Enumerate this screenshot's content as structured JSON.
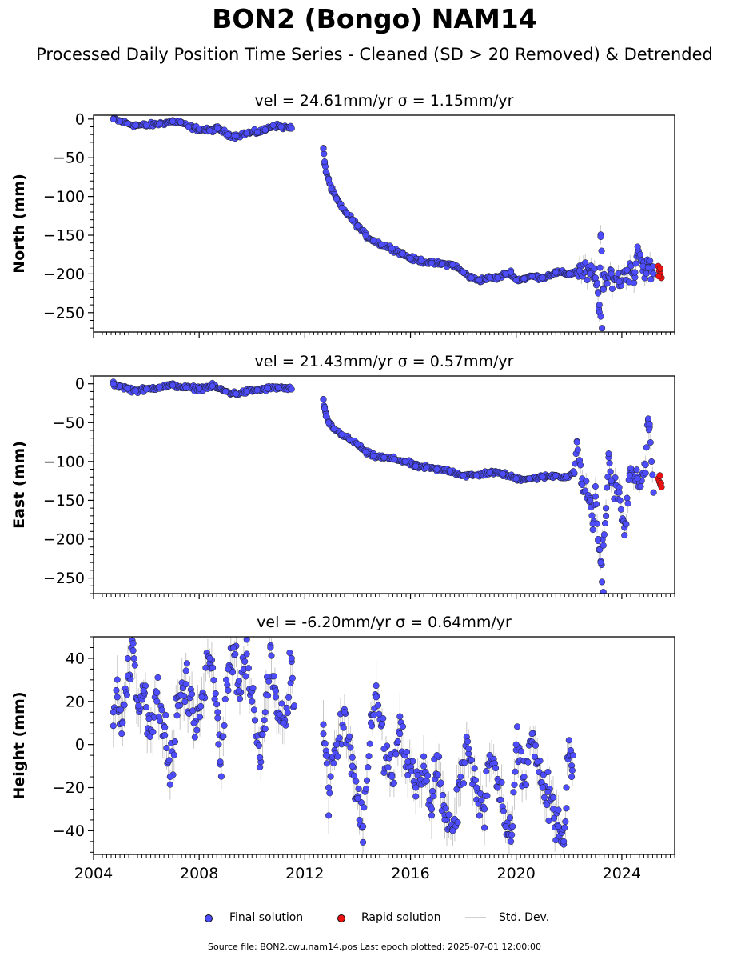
{
  "figure": {
    "title": "BON2 (Bongo) NAM14",
    "subtitle": "Processed Daily Position Time Series - Cleaned (SD > 20 Removed) & Detrended",
    "source_note": "Source file: BON2.cwu.nam14.pos  Last epoch plotted: 2025-07-01 12:00:00"
  },
  "legend": {
    "final_label": "Final solution",
    "rapid_label": "Rapid solution",
    "std_label": "Std. Dev."
  },
  "colors": {
    "final": "#4d4dff",
    "rapid": "#ee1111",
    "marker_edge": "#1a1a1a",
    "std_dev": "#c8c8c8"
  },
  "chart_data": [
    {
      "type": "scatter",
      "title": "vel = 24.61mm/yr   σ = 1.15mm/yr",
      "ylabel": "North (mm)",
      "xlim": [
        2004,
        2026
      ],
      "ylim": [
        -275,
        5
      ],
      "y_ticks": [
        0,
        -50,
        -100,
        -150,
        -200,
        -250
      ],
      "x_tick_labels": [],
      "series": [
        {
          "name": "Final solution",
          "points": [
            [
              2004.75,
              0
            ],
            [
              2005.0,
              -3
            ],
            [
              2005.3,
              -6
            ],
            [
              2005.6,
              -8
            ],
            [
              2006.0,
              -8
            ],
            [
              2006.5,
              -6
            ],
            [
              2007.0,
              -3
            ],
            [
              2007.3,
              -4
            ],
            [
              2007.6,
              -10
            ],
            [
              2008.0,
              -13
            ],
            [
              2008.4,
              -15
            ],
            [
              2008.7,
              -12
            ],
            [
              2009.1,
              -20
            ],
            [
              2009.4,
              -22
            ],
            [
              2009.8,
              -18
            ],
            [
              2010.2,
              -17
            ],
            [
              2010.5,
              -14
            ],
            [
              2010.8,
              -8
            ],
            [
              2011.1,
              -10
            ],
            [
              2011.5,
              -12
            ],
            [
              2012.7,
              -38
            ],
            [
              2012.75,
              -55
            ],
            [
              2012.8,
              -68
            ],
            [
              2012.9,
              -78
            ],
            [
              2013.0,
              -90
            ],
            [
              2013.2,
              -103
            ],
            [
              2013.4,
              -115
            ],
            [
              2013.6,
              -122
            ],
            [
              2013.8,
              -130
            ],
            [
              2014.0,
              -138
            ],
            [
              2014.3,
              -150
            ],
            [
              2014.6,
              -157
            ],
            [
              2014.9,
              -162
            ],
            [
              2015.3,
              -167
            ],
            [
              2015.7,
              -174
            ],
            [
              2016.0,
              -180
            ],
            [
              2016.4,
              -183
            ],
            [
              2016.8,
              -186
            ],
            [
              2017.2,
              -187
            ],
            [
              2017.6,
              -188
            ],
            [
              2018.0,
              -198
            ],
            [
              2018.3,
              -205
            ],
            [
              2018.6,
              -208
            ],
            [
              2019.0,
              -205
            ],
            [
              2019.3,
              -205
            ],
            [
              2019.6,
              -200
            ],
            [
              2019.8,
              -198
            ],
            [
              2020.0,
              -208
            ],
            [
              2020.3,
              -206
            ],
            [
              2020.6,
              -203
            ],
            [
              2021.0,
              -205
            ],
            [
              2021.5,
              -198
            ],
            [
              2022.0,
              -200
            ],
            [
              2022.4,
              -196
            ],
            [
              2022.8,
              -200
            ],
            [
              2023.0,
              -205
            ],
            [
              2023.1,
              -225
            ],
            [
              2023.15,
              -240
            ],
            [
              2023.2,
              -255
            ],
            [
              2023.25,
              -270
            ],
            [
              2023.3,
              -220
            ],
            [
              2023.6,
              -200
            ],
            [
              2023.9,
              -210
            ],
            [
              2024.2,
              -195
            ],
            [
              2024.5,
              -198
            ],
            [
              2024.8,
              -190
            ],
            [
              2025.0,
              -192
            ],
            [
              2025.2,
              -200
            ],
            [
              2023.2,
              -152
            ],
            [
              2024.6,
              -165
            ]
          ]
        },
        {
          "name": "Rapid solution",
          "points": [
            [
              2025.38,
              -190
            ],
            [
              2025.42,
              -196
            ],
            [
              2025.46,
              -200
            ],
            [
              2025.5,
              -205
            ],
            [
              2025.45,
              -193
            ],
            [
              2025.4,
              -203
            ]
          ]
        }
      ]
    },
    {
      "type": "scatter",
      "title": "vel = 21.43mm/yr   σ = 0.57mm/yr",
      "ylabel": "East (mm)",
      "xlim": [
        2004,
        2026
      ],
      "ylim": [
        -270,
        10
      ],
      "y_ticks": [
        0,
        -50,
        -100,
        -150,
        -200,
        -250
      ],
      "x_tick_labels": [],
      "series": [
        {
          "name": "Final solution",
          "points": [
            [
              2004.75,
              0
            ],
            [
              2005.0,
              -3
            ],
            [
              2005.3,
              -6
            ],
            [
              2005.6,
              -9
            ],
            [
              2006.0,
              -7
            ],
            [
              2006.5,
              -4
            ],
            [
              2007.0,
              -2
            ],
            [
              2007.5,
              -5
            ],
            [
              2008.0,
              -6
            ],
            [
              2008.5,
              -3
            ],
            [
              2009.0,
              -10
            ],
            [
              2009.4,
              -13
            ],
            [
              2009.8,
              -10
            ],
            [
              2010.2,
              -8
            ],
            [
              2010.6,
              -6
            ],
            [
              2011.0,
              -5
            ],
            [
              2011.5,
              -7
            ],
            [
              2012.7,
              -20
            ],
            [
              2012.75,
              -32
            ],
            [
              2012.8,
              -42
            ],
            [
              2012.9,
              -50
            ],
            [
              2013.1,
              -58
            ],
            [
              2013.4,
              -65
            ],
            [
              2013.7,
              -72
            ],
            [
              2014.0,
              -78
            ],
            [
              2014.3,
              -88
            ],
            [
              2014.6,
              -93
            ],
            [
              2015.0,
              -95
            ],
            [
              2015.4,
              -97
            ],
            [
              2015.8,
              -100
            ],
            [
              2016.2,
              -106
            ],
            [
              2016.6,
              -108
            ],
            [
              2017.0,
              -110
            ],
            [
              2017.5,
              -112
            ],
            [
              2018.0,
              -118
            ],
            [
              2018.5,
              -118
            ],
            [
              2019.0,
              -114
            ],
            [
              2019.5,
              -116
            ],
            [
              2020.0,
              -122
            ],
            [
              2020.5,
              -122
            ],
            [
              2021.0,
              -120
            ],
            [
              2021.5,
              -118
            ],
            [
              2021.9,
              -120
            ],
            [
              2022.2,
              -115
            ],
            [
              2022.5,
              -130
            ],
            [
              2022.8,
              -150
            ],
            [
              2022.9,
              -180
            ],
            [
              2023.0,
              -145
            ],
            [
              2023.1,
              -200
            ],
            [
              2023.2,
              -230
            ],
            [
              2023.25,
              -255
            ],
            [
              2023.3,
              -268
            ],
            [
              2023.4,
              -170
            ],
            [
              2023.6,
              -125
            ],
            [
              2023.9,
              -140
            ],
            [
              2024.1,
              -195
            ],
            [
              2024.3,
              -118
            ],
            [
              2024.6,
              -122
            ],
            [
              2024.9,
              -115
            ],
            [
              2025.0,
              -45
            ],
            [
              2025.05,
              -52
            ],
            [
              2025.2,
              -140
            ],
            [
              2022.3,
              -75
            ],
            [
              2023.5,
              -90
            ]
          ]
        },
        {
          "name": "Rapid solution",
          "points": [
            [
              2025.38,
              -122
            ],
            [
              2025.42,
              -126
            ],
            [
              2025.46,
              -130
            ],
            [
              2025.5,
              -133
            ],
            [
              2025.44,
              -118
            ],
            [
              2025.48,
              -128
            ]
          ]
        }
      ]
    },
    {
      "type": "scatter",
      "title": "vel = -6.20mm/yr   σ = 0.64mm/yr",
      "ylabel": "Height (mm)",
      "xlim": [
        2004,
        2026
      ],
      "ylim": [
        -51,
        50
      ],
      "y_ticks": [
        40,
        20,
        0,
        -20,
        -40
      ],
      "x_tick_labels": [
        "2004",
        "2008",
        "2012",
        "2016",
        "2020",
        "2024"
      ],
      "series": [
        {
          "name": "Final solution",
          "points": [
            [
              2004.75,
              15
            ],
            [
              2004.9,
              22
            ],
            [
              2005.1,
              10
            ],
            [
              2005.3,
              32
            ],
            [
              2005.5,
              47
            ],
            [
              2005.7,
              18
            ],
            [
              2005.9,
              25
            ],
            [
              2006.1,
              12
            ],
            [
              2006.4,
              20
            ],
            [
              2006.7,
              8
            ],
            [
              2006.9,
              -15
            ],
            [
              2007.2,
              18
            ],
            [
              2007.5,
              28
            ],
            [
              2007.8,
              10
            ],
            [
              2008.1,
              22
            ],
            [
              2008.4,
              40
            ],
            [
              2008.7,
              15
            ],
            [
              2008.8,
              -8
            ],
            [
              2009.1,
              35
            ],
            [
              2009.3,
              45
            ],
            [
              2009.5,
              25
            ],
            [
              2009.8,
              42
            ],
            [
              2010.0,
              20
            ],
            [
              2010.3,
              -6
            ],
            [
              2010.5,
              15
            ],
            [
              2010.7,
              45
            ],
            [
              2010.9,
              22
            ],
            [
              2011.2,
              10
            ],
            [
              2011.5,
              40
            ],
            [
              2011.6,
              18
            ],
            [
              2012.7,
              5
            ],
            [
              2012.8,
              -5
            ],
            [
              2012.9,
              -20
            ],
            [
              2013.2,
              0
            ],
            [
              2013.5,
              15
            ],
            [
              2013.8,
              -10
            ],
            [
              2014.0,
              -25
            ],
            [
              2014.2,
              -38
            ],
            [
              2014.5,
              10
            ],
            [
              2014.7,
              22
            ],
            [
              2015.0,
              -2
            ],
            [
              2015.3,
              -15
            ],
            [
              2015.6,
              5
            ],
            [
              2015.9,
              -8
            ],
            [
              2016.2,
              -20
            ],
            [
              2016.5,
              -10
            ],
            [
              2016.8,
              -30
            ],
            [
              2017.0,
              -5
            ],
            [
              2017.3,
              -35
            ],
            [
              2017.6,
              -40
            ],
            [
              2017.9,
              -15
            ],
            [
              2018.2,
              -2
            ],
            [
              2018.5,
              -20
            ],
            [
              2018.8,
              -30
            ],
            [
              2019.0,
              -5
            ],
            [
              2019.3,
              -20
            ],
            [
              2019.6,
              -38
            ],
            [
              2019.8,
              -45
            ],
            [
              2020.0,
              0
            ],
            [
              2020.3,
              -15
            ],
            [
              2020.6,
              5
            ],
            [
              2020.8,
              -8
            ],
            [
              2021.0,
              -20
            ],
            [
              2021.2,
              -22
            ],
            [
              2021.4,
              -30
            ],
            [
              2021.6,
              -38
            ],
            [
              2021.8,
              -45
            ],
            [
              2021.9,
              -20
            ],
            [
              2022.0,
              2
            ],
            [
              2022.1,
              -15
            ],
            [
              2022.15,
              -5
            ]
          ]
        }
      ]
    }
  ]
}
